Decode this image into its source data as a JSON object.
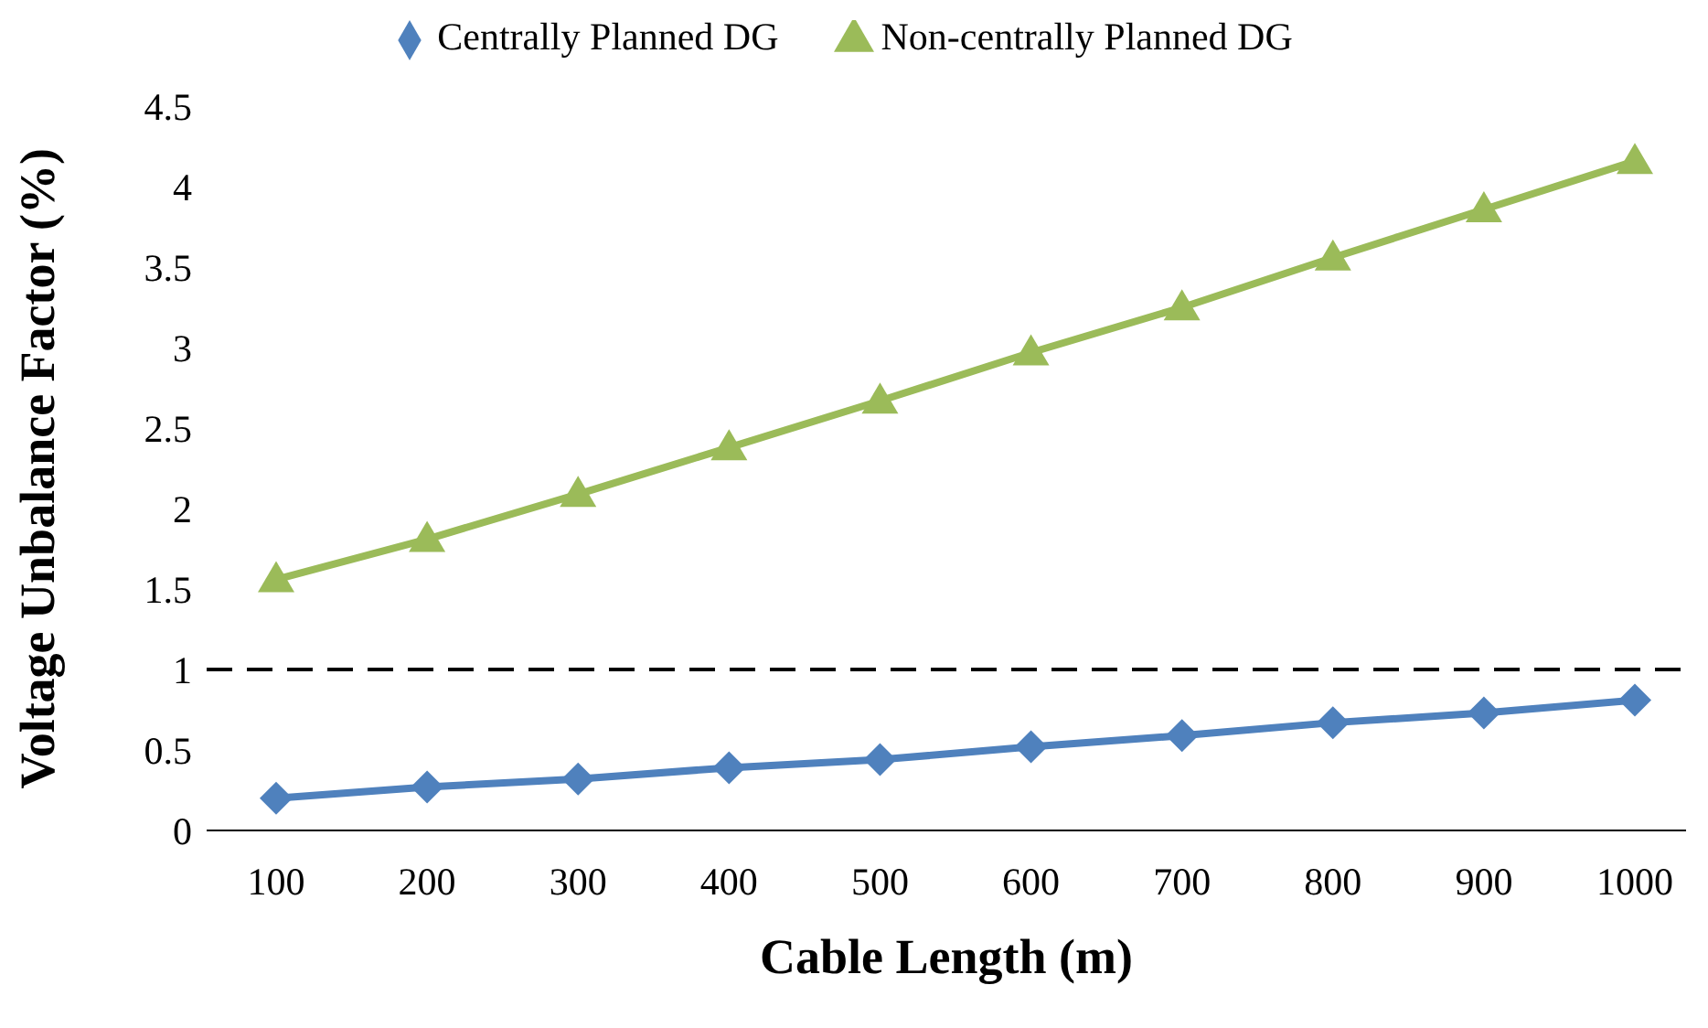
{
  "chart_data": {
    "type": "line",
    "xlabel": "Cable Length (m)",
    "ylabel": "Voltage Unbalance Factor (%)",
    "categories": [
      "100",
      "200",
      "300",
      "400",
      "500",
      "600",
      "700",
      "800",
      "900",
      "1000"
    ],
    "series": [
      {
        "name": "Centrally Planned DG",
        "color": "#4f81bd",
        "marker": "diamond",
        "values": [
          0.2,
          0.27,
          0.32,
          0.39,
          0.44,
          0.52,
          0.59,
          0.67,
          0.73,
          0.81
        ]
      },
      {
        "name": "Non-centrally Planned DG",
        "color": "#9bbb59",
        "marker": "triangle",
        "values": [
          1.56,
          1.81,
          2.09,
          2.38,
          2.67,
          2.97,
          3.25,
          3.56,
          3.86,
          4.16
        ]
      }
    ],
    "ylim": [
      0,
      4.5
    ],
    "yticks": [
      0,
      0.5,
      1,
      1.5,
      2,
      2.5,
      3,
      3.5,
      4,
      4.5
    ],
    "ref_lines": [
      {
        "axis": "y",
        "value": 1,
        "color": "#000000",
        "line_style": "dashed"
      }
    ],
    "grid": false,
    "legend": "top"
  }
}
